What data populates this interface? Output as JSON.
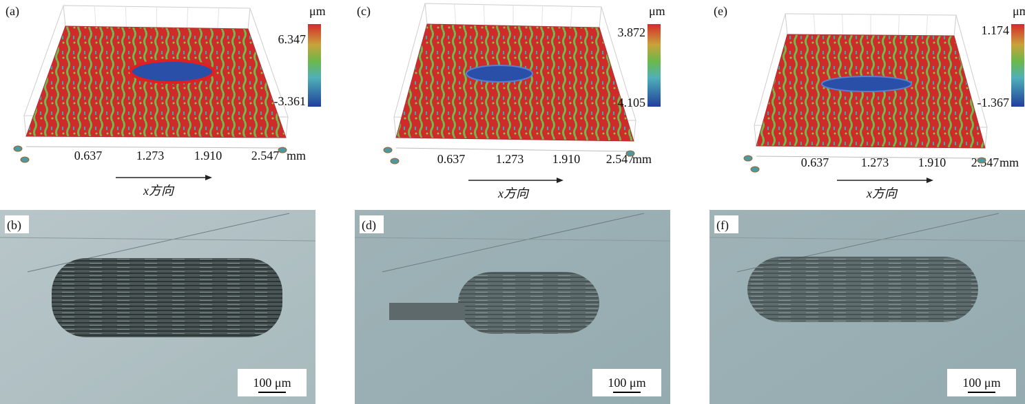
{
  "panels": [
    {
      "label": "(a)",
      "unit": "μm",
      "max": "6.347",
      "min": "-3.361",
      "x_ticks": [
        "0.637",
        "1.273",
        "1.910",
        "2.547"
      ],
      "x_unit": "mm",
      "direction": "x方向"
    },
    {
      "label": "(c)",
      "unit": "μm",
      "max": "3.872",
      "min": "4.105",
      "x_ticks": [
        "0.637",
        "1.273",
        "1.910",
        "2.547"
      ],
      "x_unit": "mm",
      "direction": "x方向"
    },
    {
      "label": "(e)",
      "unit": "μm",
      "max": "1.174",
      "min": "-1.367",
      "x_ticks": [
        "0.637",
        "1.273",
        "1.910",
        "2.547"
      ],
      "x_unit": "mm",
      "direction": "x方向"
    }
  ],
  "micrographs": [
    {
      "label": "(b)",
      "scale_bar": "100 μm"
    },
    {
      "label": "(d)",
      "scale_bar": "100 μm"
    },
    {
      "label": "(f)",
      "scale_bar": "100 μm"
    }
  ]
}
